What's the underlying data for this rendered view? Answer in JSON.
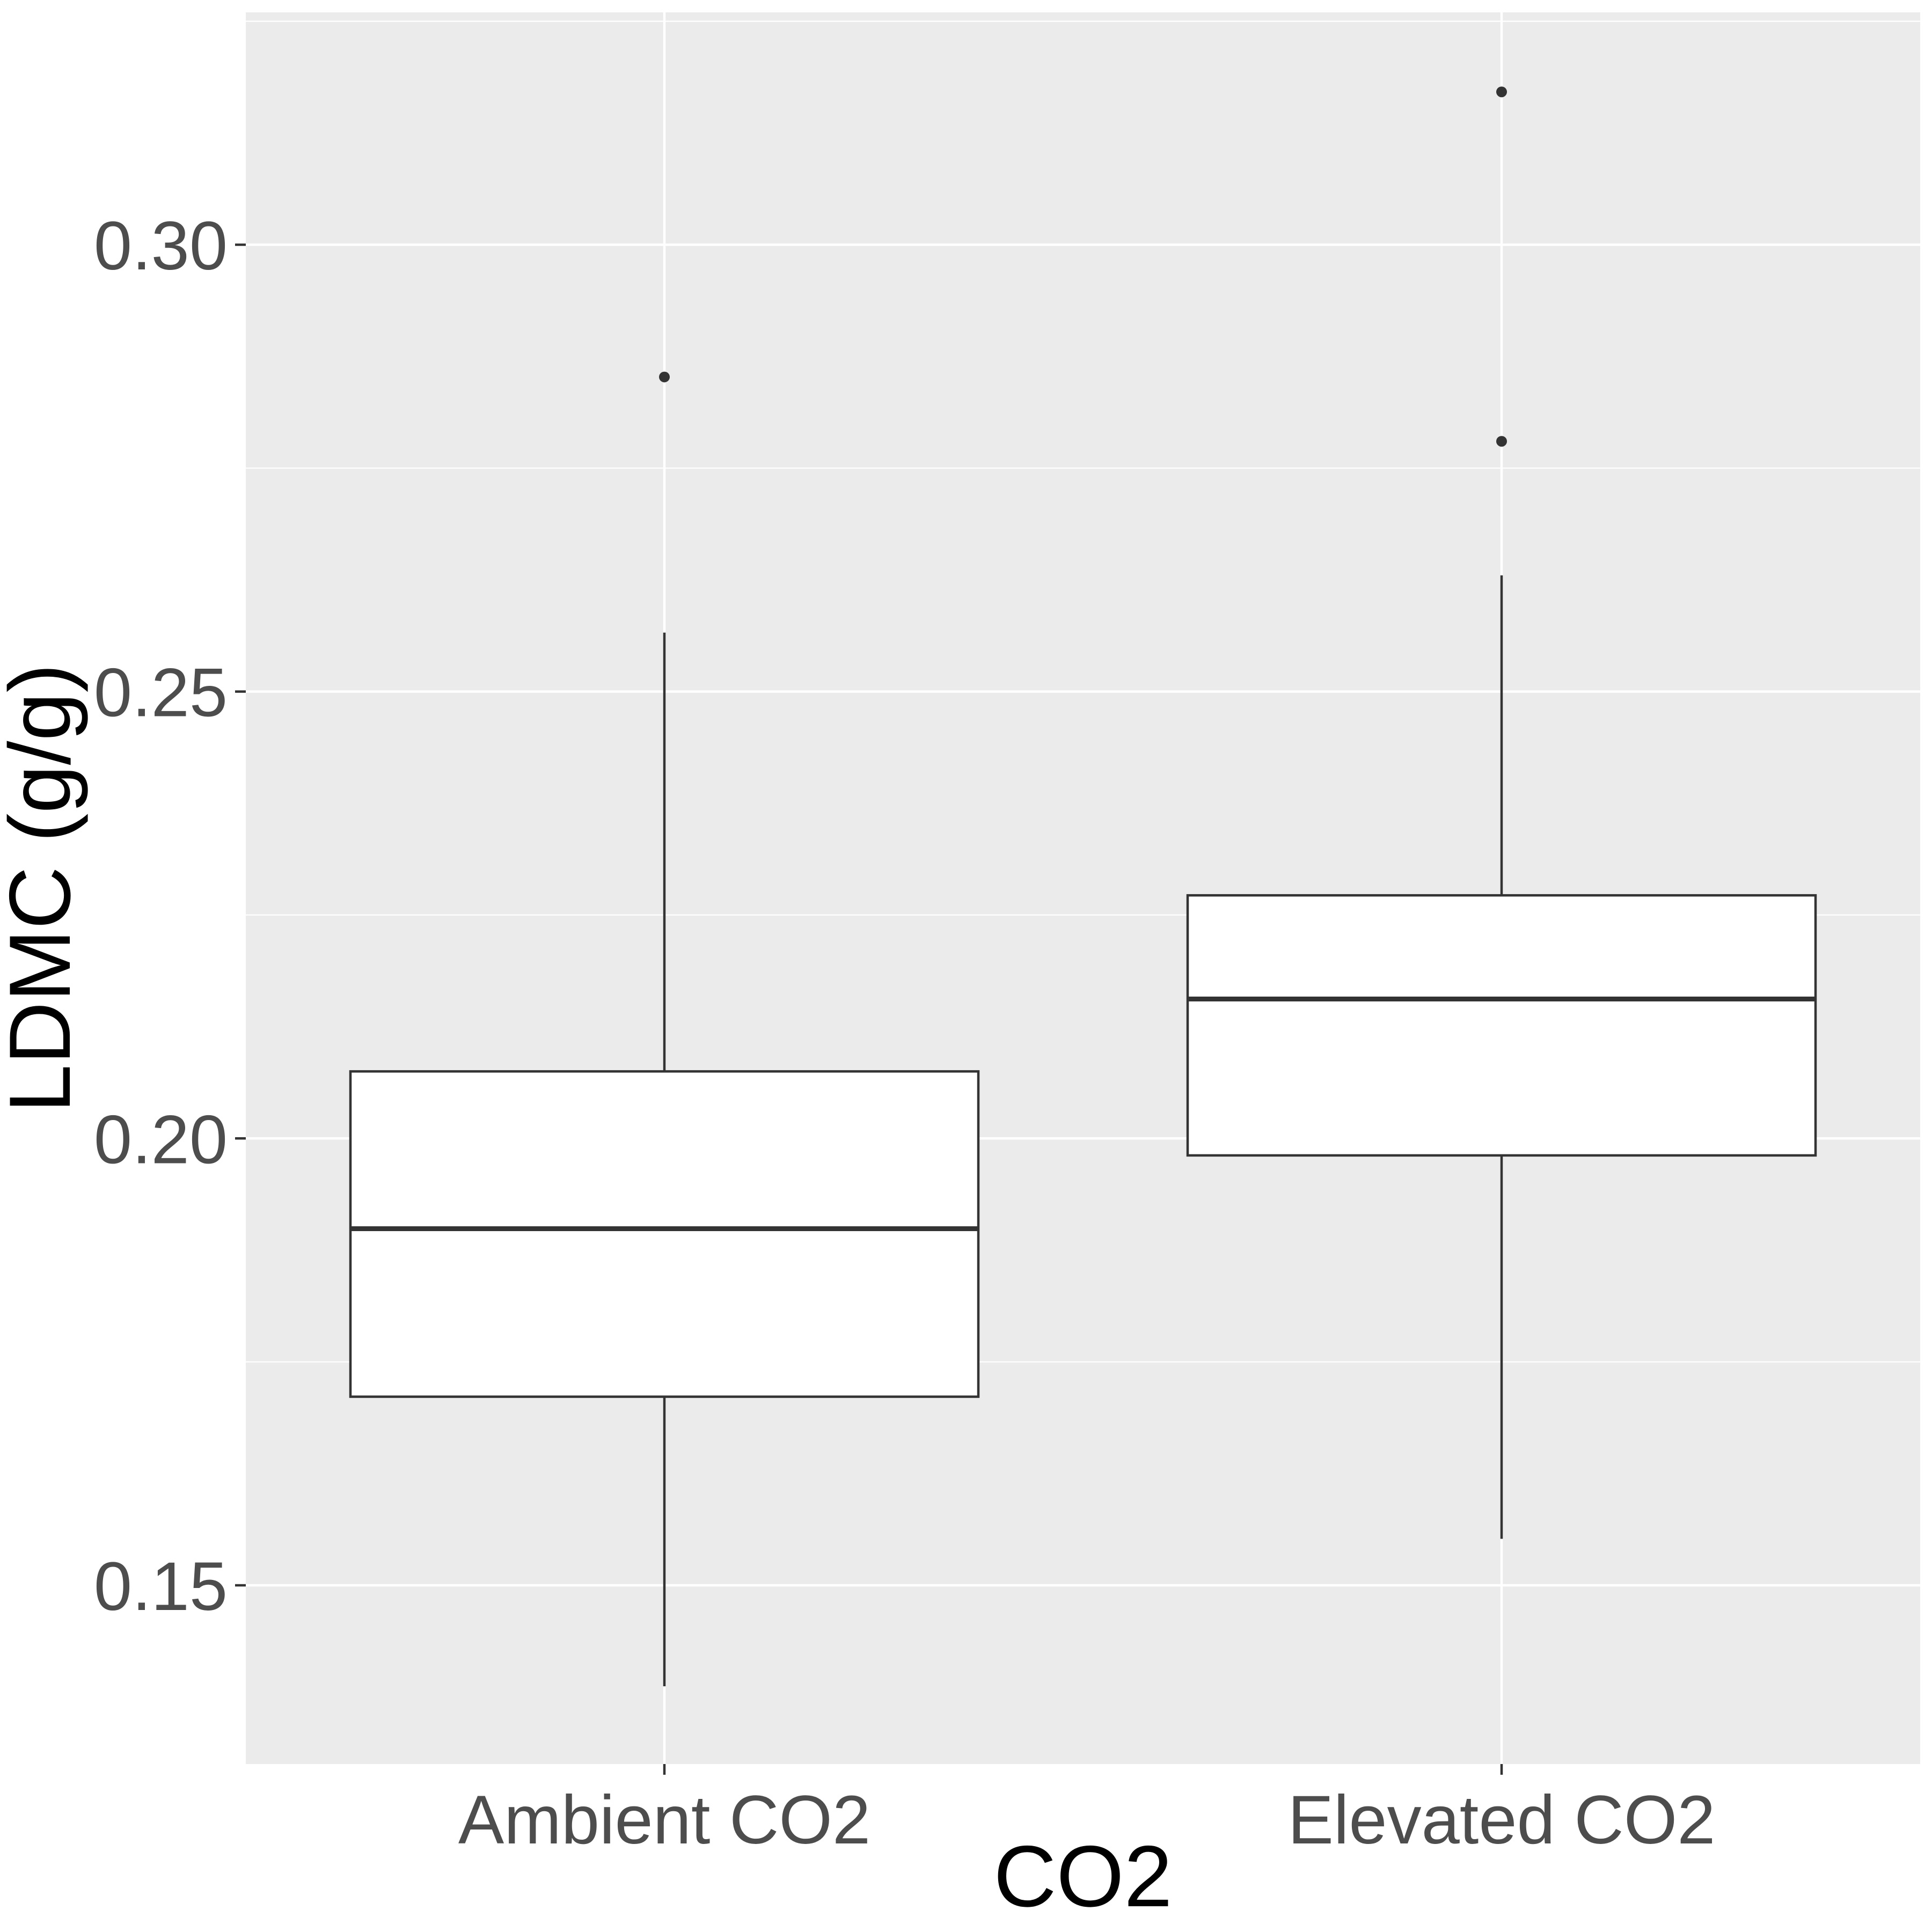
{
  "chart_data": {
    "type": "boxplot",
    "title": "",
    "xlabel": "CO2",
    "ylabel": "LDMC (g/g)",
    "ylim": [
      0.13,
      0.326
    ],
    "yticks": [
      {
        "value": 0.15,
        "label": "0.15"
      },
      {
        "value": 0.2,
        "label": "0.20"
      },
      {
        "value": 0.25,
        "label": "0.25"
      },
      {
        "value": 0.3,
        "label": "0.30"
      }
    ],
    "grid": true,
    "legend": "none",
    "categories": [
      "Ambient CO2",
      "Elevated CO2"
    ],
    "boxes": [
      {
        "category": "Ambient CO2",
        "whisker_low": 0.1387,
        "q1": 0.1711,
        "median": 0.1899,
        "q3": 0.2075,
        "whisker_high": 0.2566,
        "outliers": [
          0.2852
        ]
      },
      {
        "category": "Elevated CO2",
        "whisker_low": 0.1552,
        "q1": 0.1981,
        "median": 0.2156,
        "q3": 0.2272,
        "whisker_high": 0.263,
        "outliers": [
          0.278,
          0.3171
        ]
      }
    ],
    "colors": {
      "panel": "#ebebeb",
      "box_fill": "#ffffff",
      "line": "#333333",
      "grid": "#ffffff"
    }
  }
}
